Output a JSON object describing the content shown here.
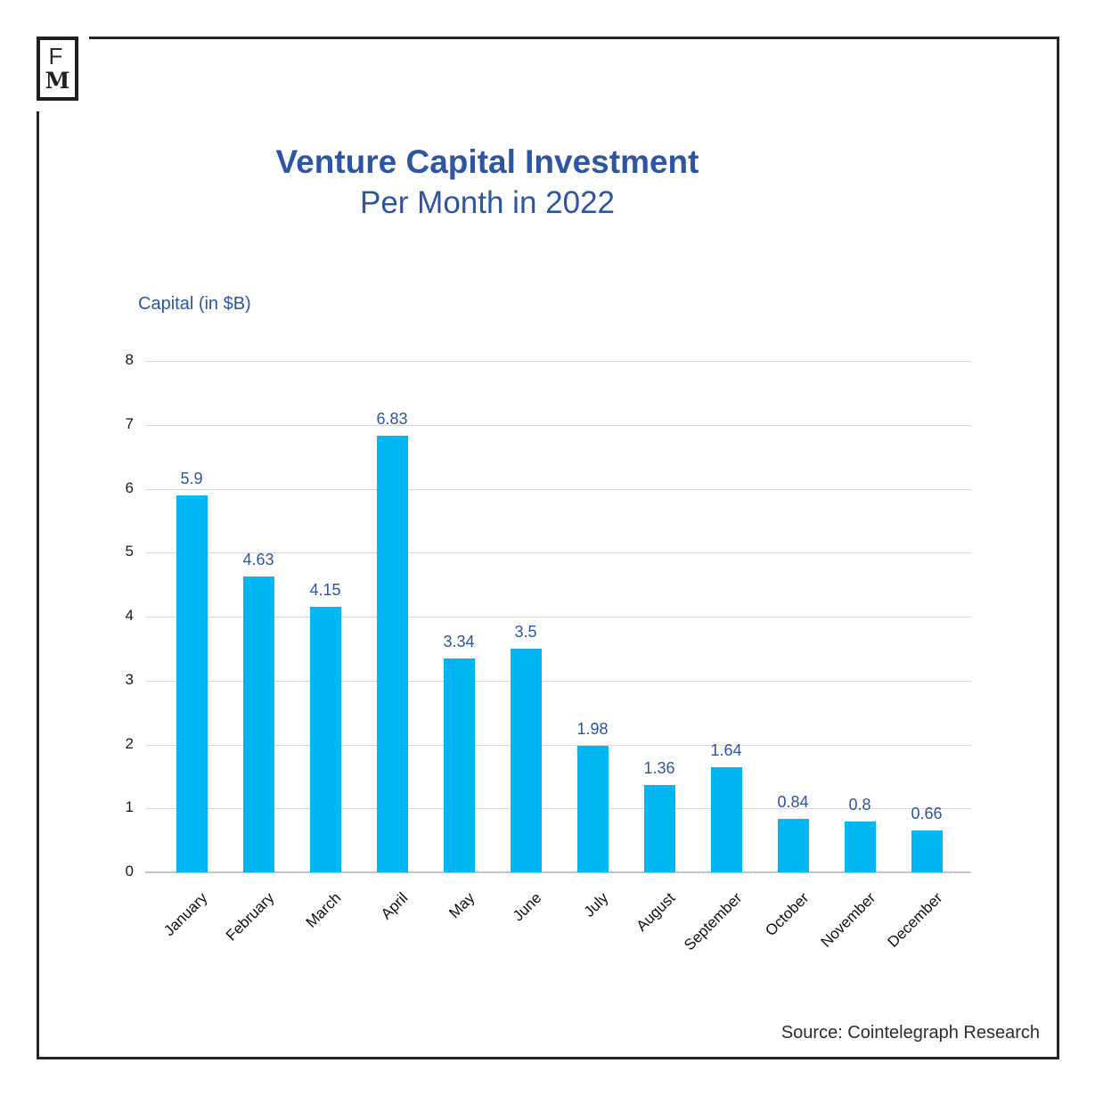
{
  "logo": {
    "line1": "F",
    "line2": "M"
  },
  "title": {
    "line1": "Venture Capital Investment",
    "line2": "Per Month in 2022"
  },
  "ylabel": "Capital (in $B)",
  "source": "Source: Cointelegraph Research",
  "colors": {
    "bar": "#00b7f3",
    "accent_blue": "#2e55a4",
    "gridline": "#d9d9d9",
    "axisline": "#c4c4c4",
    "frame": "#262626",
    "tick_text": "#1a1a1a",
    "source_text": "#2d2d2d"
  },
  "chart_data": {
    "type": "bar",
    "title": "Venture Capital Investment Per Month in 2022",
    "xlabel": "",
    "ylabel": "Capital (in $B)",
    "categories": [
      "January",
      "February",
      "March",
      "April",
      "May",
      "June",
      "July",
      "August",
      "September",
      "October",
      "November",
      "December"
    ],
    "values": [
      5.9,
      4.63,
      4.15,
      6.83,
      3.34,
      3.5,
      1.98,
      1.36,
      1.64,
      0.84,
      0.8,
      0.66
    ],
    "value_labels": [
      "5.9",
      "4.63",
      "4.15",
      "6.83",
      "3.34",
      "3.5",
      "1.98",
      "1.36",
      "1.64",
      "0.84",
      "0.8",
      "0.66"
    ],
    "ylim": [
      0,
      8
    ],
    "yticks": [
      0,
      1,
      2,
      3,
      4,
      5,
      6,
      7,
      8
    ],
    "grid": true,
    "legend": false,
    "source": "Source: Cointelegraph Research"
  }
}
